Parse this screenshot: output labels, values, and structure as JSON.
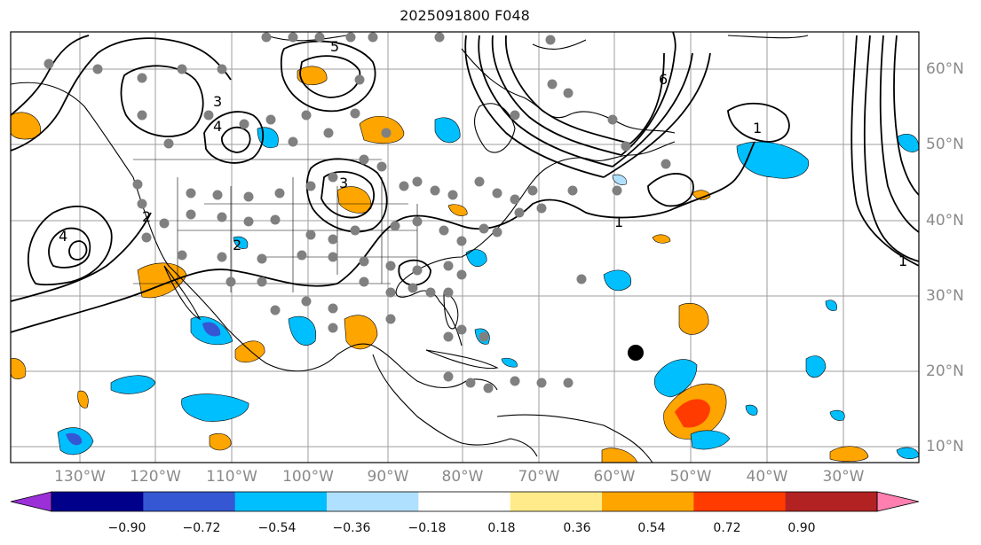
{
  "title": "2025091800 F048",
  "colors": {
    "ocean": "#ffffff",
    "coast": "#000000",
    "grid": "#9e9e9e",
    "contour": "#000000",
    "station": "#808080",
    "storm": "#000000"
  },
  "lon_labels": [
    "130°W",
    "120°W",
    "110°W",
    "100°W",
    "90°W",
    "80°W",
    "70°W",
    "60°W",
    "50°W",
    "40°W",
    "30°W"
  ],
  "lat_labels": [
    "60°N",
    "50°N",
    "40°N",
    "30°N",
    "20°N",
    "10°N"
  ],
  "colorbar": {
    "ticks": [
      "−0.90",
      "−0.72",
      "−0.54",
      "−0.36",
      "−0.18",
      "0.18",
      "0.36",
      "0.54",
      "0.72",
      "0.90"
    ],
    "colors": [
      "#9b30d8",
      "#00008b",
      "#3557d3",
      "#00bfff",
      "#b0e0ff",
      "#ffffff",
      "#ffeb8a",
      "#ffa500",
      "#ff3b00",
      "#b22222",
      "#ff80b0"
    ]
  },
  "contour_labels": [
    "1",
    "2",
    "3",
    "4",
    "5",
    "6"
  ]
}
